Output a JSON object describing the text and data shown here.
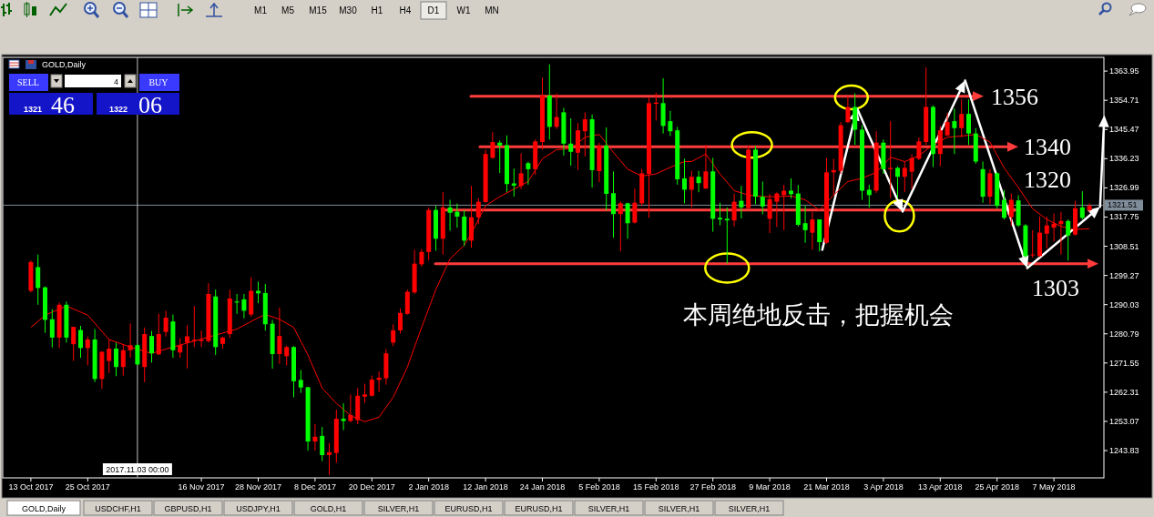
{
  "chart_data": {
    "type": "candlestick",
    "title": "GOLD,Daily",
    "categories": [
      "13 Oct 2017",
      null,
      null,
      null,
      null,
      null,
      null,
      null,
      "25 Oct 2017",
      null,
      null,
      null,
      null,
      null,
      null,
      null,
      null,
      null,
      null,
      null,
      null,
      null,
      null,
      null,
      "16 Nov 2017",
      null,
      null,
      null,
      null,
      null,
      null,
      null,
      "28 Nov 2017",
      null,
      null,
      null,
      null,
      null,
      null,
      null,
      "8 Dec 2017",
      null,
      null,
      null,
      null,
      null,
      null,
      null,
      "20 Dec 2017",
      null,
      null,
      null,
      null,
      null,
      null,
      null,
      "2 Jan 2018",
      null,
      null,
      null,
      null,
      null,
      null,
      null,
      "12 Jan 2018",
      null,
      null,
      null,
      null,
      null,
      null,
      null,
      "24 Jan 2018",
      null,
      null,
      null,
      null,
      null,
      null,
      null,
      "5 Feb 2018",
      null,
      null,
      null,
      null,
      null,
      null,
      null,
      "15 Feb 2018",
      null,
      null,
      null,
      null,
      null,
      null,
      null,
      "27 Feb 2018",
      null,
      null,
      null,
      null,
      null,
      null,
      null,
      "9 Mar 2018",
      null,
      null,
      null,
      null,
      null,
      null,
      null,
      "21 Mar 2018",
      null,
      null,
      null,
      null,
      null,
      null,
      null,
      "3 Apr 2018",
      null,
      null,
      null,
      null,
      null,
      null,
      null,
      "13 Apr 2018",
      null,
      null,
      null,
      null,
      null,
      null,
      null,
      "25 Apr 2018",
      null,
      null,
      null,
      null,
      null,
      null,
      null,
      "7 May 2018",
      null,
      null,
      null,
      null,
      null
    ],
    "ohlc": [
      [
        1294.4,
        1304,
        1293.9,
        1303.5
      ],
      [
        1301.9,
        1305.9,
        1290.0,
        1295.3
      ],
      [
        1295.5,
        1295.8,
        1281.1,
        1285.2
      ],
      [
        1285.4,
        1288.6,
        1276.5,
        1279.6
      ],
      [
        1279.6,
        1290.7,
        1276.3,
        1290.0
      ],
      [
        1290.0,
        1291.0,
        1278.0,
        1279.6
      ],
      [
        1277.5,
        1283.0,
        1272.2,
        1283.0
      ],
      [
        1282.0,
        1283.3,
        1273.2,
        1276.3
      ],
      [
        1276.3,
        1279.9,
        1270.8,
        1279.0
      ],
      [
        1279.0,
        1282.3,
        1265.5,
        1266.5
      ],
      [
        1266.5,
        1275.3,
        1263.4,
        1275.1
      ],
      [
        1272.2,
        1279.0,
        1268.4,
        1276.1
      ],
      [
        1276.1,
        1278.0,
        1267.4,
        1270.3
      ],
      [
        1270.3,
        1277.5,
        1267.6,
        1275.6
      ],
      [
        1275.6,
        1284.1,
        1273.2,
        1277.2
      ],
      [
        1277.2,
        1277.5,
        1270.8,
        1271.1
      ],
      [
        1270.3,
        1282.8,
        1265.5,
        1280.7
      ],
      [
        1280.1,
        1281.7,
        1271.7,
        1274.6
      ],
      [
        1274.3,
        1287.1,
        1274.1,
        1280.7
      ],
      [
        1281.4,
        1288.1,
        1279.9,
        1285.9
      ],
      [
        1284.7,
        1286.9,
        1273.2,
        1275.6
      ],
      [
        1274.9,
        1279.4,
        1273.2,
        1277.2
      ],
      [
        1278.0,
        1283.5,
        1269.8,
        1280.0
      ],
      [
        1278.5,
        1289.6,
        1276.6,
        1278.9
      ],
      [
        1278.5,
        1281.8,
        1276.6,
        1278.9
      ],
      [
        1278.5,
        1296.8,
        1278.0,
        1293.4
      ],
      [
        1292.6,
        1294.8,
        1274.1,
        1276.6
      ],
      [
        1277.6,
        1279.9,
        1276.1,
        1279.6
      ],
      [
        1280.7,
        1294.8,
        1279.4,
        1292.0
      ],
      [
        1291.0,
        1293.4,
        1287.1,
        1290.7
      ],
      [
        1291.7,
        1293.4,
        1285.7,
        1288.1
      ],
      [
        1286.9,
        1298.7,
        1286.2,
        1294.4
      ],
      [
        1294.4,
        1297.3,
        1290.5,
        1293.6
      ],
      [
        1293.7,
        1296.6,
        1281.8,
        1283.8
      ],
      [
        1284.0,
        1285.2,
        1269.8,
        1274.4
      ],
      [
        1274.4,
        1289.1,
        1271.3,
        1280.1
      ],
      [
        1273.7,
        1277.0,
        1270.8,
        1276.6
      ],
      [
        1276.6,
        1276.9,
        1260.7,
        1265.8
      ],
      [
        1266.2,
        1269.3,
        1262.1,
        1263.8
      ],
      [
        1263.9,
        1264.0,
        1243.8,
        1246.7
      ],
      [
        1246.7,
        1252.2,
        1243.8,
        1248.2
      ],
      [
        1248.5,
        1251.3,
        1240.5,
        1242.4
      ],
      [
        1242.4,
        1246.2,
        1236.1,
        1243.3
      ],
      [
        1243.1,
        1256.8,
        1240.0,
        1253.9
      ],
      [
        1253.9,
        1258.8,
        1250.3,
        1253.2
      ],
      [
        1253.2,
        1261.6,
        1252.8,
        1255.1
      ],
      [
        1253.5,
        1263.6,
        1252.2,
        1261.2
      ],
      [
        1260.9,
        1265.0,
        1258.9,
        1261.6
      ],
      [
        1261.2,
        1267.6,
        1260.9,
        1266.3
      ],
      [
        1266.2,
        1268.9,
        1262.4,
        1266.9
      ],
      [
        1266.7,
        1275.9,
        1264.7,
        1274.6
      ],
      [
        1278.0,
        1283.8,
        1276.9,
        1281.9
      ],
      [
        1281.9,
        1288.8,
        1280.9,
        1287.4
      ],
      [
        1287.1,
        1294.8,
        1286.9,
        1294.1
      ],
      [
        1293.9,
        1307.4,
        1293.4,
        1303.0
      ],
      [
        1302.8,
        1307.6,
        1302.1,
        1306.7
      ],
      [
        1306.7,
        1320.8,
        1304.0,
        1320.0
      ],
      [
        1320.0,
        1321.3,
        1307.1,
        1310.9
      ],
      [
        1310.9,
        1325.6,
        1305.9,
        1320.8
      ],
      [
        1320.8,
        1323.2,
        1313.4,
        1319.1
      ],
      [
        1319.4,
        1322.0,
        1314.4,
        1317.9
      ],
      [
        1317.9,
        1319.9,
        1308.6,
        1310.3
      ],
      [
        1310.3,
        1327.6,
        1308.0,
        1317.7
      ],
      [
        1317.7,
        1323.7,
        1315.5,
        1322.6
      ],
      [
        1322.5,
        1339.1,
        1322.3,
        1337.7
      ],
      [
        1336.5,
        1344.6,
        1336.2,
        1341.5
      ],
      [
        1341.3,
        1342.0,
        1331.7,
        1340.4
      ],
      [
        1340.5,
        1343.6,
        1325.6,
        1328.2
      ],
      [
        1328.4,
        1333.1,
        1324.2,
        1327.7
      ],
      [
        1327.6,
        1337.9,
        1326.6,
        1331.6
      ],
      [
        1334.8,
        1335.3,
        1328.0,
        1332.9
      ],
      [
        1332.9,
        1342.3,
        1331.1,
        1341.7
      ],
      [
        1341.5,
        1361.9,
        1339.1,
        1356.2
      ],
      [
        1356.2,
        1366.1,
        1342.3,
        1346.3
      ],
      [
        1346.3,
        1356.9,
        1345.6,
        1349.4
      ],
      [
        1350.9,
        1352.3,
        1337.2,
        1341.0
      ],
      [
        1341.0,
        1349.0,
        1334.0,
        1338.4
      ],
      [
        1338.1,
        1347.5,
        1332.7,
        1345.2
      ],
      [
        1344.9,
        1350.9,
        1336.9,
        1348.7
      ],
      [
        1348.7,
        1350.2,
        1327.1,
        1332.6
      ],
      [
        1332.3,
        1341.3,
        1328.8,
        1340.4
      ],
      [
        1340.4,
        1346.1,
        1319.9,
        1325.1
      ],
      [
        1325.3,
        1332.2,
        1311.2,
        1318.7
      ],
      [
        1318.7,
        1322.7,
        1306.9,
        1322.1
      ],
      [
        1322.1,
        1322.3,
        1310.9,
        1315.8
      ],
      [
        1316.0,
        1326.8,
        1315.7,
        1322.3
      ],
      [
        1322.1,
        1333.0,
        1321.3,
        1331.6
      ],
      [
        1331.4,
        1355.5,
        1317.5,
        1353.8
      ],
      [
        1353.6,
        1357.1,
        1348.3,
        1354.0
      ],
      [
        1353.8,
        1361.7,
        1344.2,
        1346.6
      ],
      [
        1348.1,
        1351.3,
        1343.4,
        1344.9
      ],
      [
        1345.2,
        1346.3,
        1328.0,
        1329.7
      ],
      [
        1330.0,
        1336.2,
        1322.1,
        1326.4
      ],
      [
        1326.4,
        1332.4,
        1320.8,
        1330.5
      ],
      [
        1330.5,
        1332.4,
        1325.6,
        1328.5
      ],
      [
        1326.8,
        1340.6,
        1326.6,
        1332.2
      ],
      [
        1332.2,
        1336.5,
        1313.1,
        1317.2
      ],
      [
        1317.5,
        1322.3,
        1315.1,
        1317.0
      ],
      [
        1317.2,
        1320.8,
        1303.0,
        1316.7
      ],
      [
        1316.7,
        1325.2,
        1314.8,
        1322.6
      ],
      [
        1322.9,
        1327.6,
        1317.3,
        1320.8
      ],
      [
        1320.6,
        1340.4,
        1320.2,
        1339.1
      ],
      [
        1339.1,
        1340.3,
        1321.8,
        1324.2
      ],
      [
        1324.2,
        1329.0,
        1318.6,
        1321.1
      ],
      [
        1317.2,
        1325.0,
        1312.7,
        1323.4
      ],
      [
        1322.6,
        1325.6,
        1314.6,
        1325.2
      ],
      [
        1324.7,
        1328.0,
        1313.6,
        1326.1
      ],
      [
        1326.1,
        1330.0,
        1323.7,
        1325.0
      ],
      [
        1325.2,
        1327.9,
        1314.8,
        1315.3
      ],
      [
        1315.8,
        1321.3,
        1309.6,
        1313.6
      ],
      [
        1312.8,
        1319.4,
        1307.4,
        1317.0
      ],
      [
        1317.0,
        1317.0,
        1306.9,
        1309.8
      ],
      [
        1309.6,
        1336.5,
        1309.3,
        1331.9
      ],
      [
        1331.9,
        1336.2,
        1324.7,
        1332.6
      ],
      [
        1332.4,
        1347.8,
        1331.4,
        1346.8
      ],
      [
        1347.8,
        1355.9,
        1347.5,
        1352.6
      ],
      [
        1352.6,
        1356.9,
        1340.6,
        1345.4
      ],
      [
        1345.4,
        1346.8,
        1323.2,
        1326.1
      ],
      [
        1326.4,
        1328.0,
        1320.8,
        1324.7
      ],
      [
        1326.1,
        1344.9,
        1325.4,
        1341.3
      ],
      [
        1341.3,
        1342.3,
        1331.4,
        1332.9
      ],
      [
        1332.9,
        1348.1,
        1323.7,
        1333.3
      ],
      [
        1333.3,
        1333.8,
        1323.7,
        1330.5
      ],
      [
        1330.5,
        1335.3,
        1325.6,
        1333.3
      ],
      [
        1332.1,
        1337.7,
        1326.6,
        1336.4
      ],
      [
        1336.2,
        1342.9,
        1335.8,
        1341.7
      ],
      [
        1341.5,
        1365.1,
        1340.6,
        1352.6
      ],
      [
        1352.6,
        1353.1,
        1333.6,
        1337.7
      ],
      [
        1337.7,
        1346.5,
        1333.8,
        1345.2
      ],
      [
        1343.6,
        1350.7,
        1343.4,
        1347.8
      ],
      [
        1348.1,
        1352.1,
        1337.7,
        1345.9
      ],
      [
        1345.9,
        1355.0,
        1343.0,
        1350.4
      ],
      [
        1350.4,
        1355.0,
        1340.6,
        1344.2
      ],
      [
        1344.2,
        1345.9,
        1334.6,
        1335.3
      ],
      [
        1332.9,
        1335.3,
        1322.3,
        1324.2
      ],
      [
        1324.2,
        1332.9,
        1321.8,
        1331.6
      ],
      [
        1331.6,
        1331.9,
        1320.4,
        1321.3
      ],
      [
        1323.2,
        1326.3,
        1317.0,
        1317.5
      ],
      [
        1317.7,
        1325.2,
        1315.1,
        1323.2
      ],
      [
        1323.0,
        1324.7,
        1314.6,
        1315.1
      ],
      [
        1315.1,
        1315.5,
        1304.9,
        1305.4
      ],
      [
        1305.7,
        1313.6,
        1304.9,
        1305.9
      ],
      [
        1305.4,
        1317.9,
        1305.1,
        1312.8
      ],
      [
        1312.5,
        1317.9,
        1307.8,
        1315.1
      ],
      [
        1314.4,
        1318.9,
        1310.0,
        1315.7
      ],
      [
        1315.5,
        1319.4,
        1305.9,
        1316.5
      ],
      [
        1316.5,
        1317.0,
        1304.0,
        1311.9
      ],
      [
        1312.2,
        1322.8,
        1311.9,
        1320.5
      ],
      [
        1320.8,
        1325.9,
        1317.0,
        1317.5
      ],
      [
        1319.9,
        1322.1,
        1319.4,
        1321.3
      ]
    ],
    "colors": [
      "#ff0000",
      "#00ff00",
      "#00ff00",
      "#00ff00",
      "#ff0000",
      "#00ff00",
      "#ff0000",
      "#00ff00",
      "#ff0000",
      "#00ff00",
      "#ff0000",
      "#ff0000",
      "#00ff00",
      "#ff0000",
      "#ff0000",
      "#00ff00",
      "#ff0000",
      "#00ff00",
      "#ff0000",
      "#ff0000",
      "#00ff00",
      "#ff0000",
      "#ff0000",
      "#ff0000",
      "#ff0000",
      "#ff0000",
      "#00ff00",
      "#ff0000",
      "#ff0000",
      "#00ff00",
      "#00ff00",
      "#ff0000",
      "#00ff00",
      "#00ff00",
      "#00ff00",
      "#ff0000",
      "#ff0000",
      "#00ff00",
      "#00ff00",
      "#00ff00",
      "#ff0000",
      "#00ff00",
      "#ff0000",
      "#ff0000",
      "#00ff00",
      "#ff0000",
      "#ff0000",
      "#ff0000",
      "#ff0000",
      "#ff0000",
      "#ff0000",
      "#ff0000",
      "#ff0000",
      "#ff0000",
      "#ff0000",
      "#ff0000",
      "#ff0000",
      "#00ff00",
      "#ff0000",
      "#00ff00",
      "#00ff00",
      "#00ff00",
      "#ff0000",
      "#ff0000",
      "#ff0000",
      "#ff0000",
      "#00ff00",
      "#00ff00",
      "#00ff00",
      "#ff0000",
      "#00ff00",
      "#ff0000",
      "#ff0000",
      "#00ff00",
      "#ff0000",
      "#00ff00",
      "#00ff00",
      "#ff0000",
      "#ff0000",
      "#00ff00",
      "#ff0000",
      "#00ff00",
      "#00ff00",
      "#ff0000",
      "#00ff00",
      "#ff0000",
      "#ff0000",
      "#ff0000",
      "#ff0000",
      "#00ff00",
      "#00ff00",
      "#00ff00",
      "#00ff00",
      "#ff0000",
      "#00ff00",
      "#ff0000",
      "#00ff00",
      "#00ff00",
      "#00ff00",
      "#ff0000",
      "#00ff00",
      "#ff0000",
      "#00ff00",
      "#00ff00",
      "#ff0000",
      "#ff0000",
      "#ff0000",
      "#00ff00",
      "#00ff00",
      "#00ff00",
      "#ff0000",
      "#00ff00",
      "#ff0000",
      "#ff0000",
      "#ff0000",
      "#ff0000",
      "#00ff00",
      "#00ff00",
      "#00ff00",
      "#ff0000",
      "#00ff00",
      "#ff0000",
      "#00ff00",
      "#ff0000",
      "#ff0000",
      "#ff0000",
      "#ff0000",
      "#00ff00",
      "#ff0000",
      "#ff0000",
      "#00ff00",
      "#ff0000",
      "#00ff00",
      "#00ff00",
      "#00ff00",
      "#ff0000",
      "#00ff00",
      "#00ff00",
      "#ff0000",
      "#00ff00",
      "#00ff00",
      "#ff0000",
      "#ff0000",
      "#ff0000",
      "#ff0000",
      "#ff0000",
      "#00ff00",
      "#ff0000",
      "#00ff00",
      "#ff0000"
    ],
    "series": [
      {
        "type": "line",
        "color": "#ff0000",
        "values": [
          1282.8,
          null,
          1286.7,
          null,
          null,
          1289.6,
          null,
          null,
          1286.7,
          null,
          null,
          1279.0,
          null,
          null,
          1276.6,
          null,
          null,
          1274.6,
          null,
          null,
          1276.6,
          null,
          null,
          1278.5,
          null,
          null,
          1280.4,
          null,
          null,
          1282.3,
          null,
          null,
          1285.9,
          1286.9,
          null,
          1285.4,
          null,
          1282.8,
          null,
          1274.1,
          null,
          1263.6,
          null,
          1258.8,
          null,
          1254.9,
          null,
          1253.0,
          null,
          1254.4,
          null,
          1260.7,
          null,
          1270.3,
          null,
          1282.8,
          null,
          1294.8,
          null,
          1304.5,
          null,
          1308.8,
          1312.6,
          null,
          1321.3,
          null,
          1324.2,
          null,
          1326.6,
          null,
          1329.0,
          null,
          1336.2,
          null,
          1339.1,
          null,
          1339.4,
          null,
          1343.0,
          null,
          1343.9,
          null,
          1338.2,
          null,
          1332.9,
          null,
          1330.7,
          null,
          1331.4,
          null,
          1333.5,
          null,
          1335.3,
          1335.3,
          null,
          1337.7,
          null,
          1331.4,
          null,
          1326.1,
          null,
          1324.7,
          null,
          1324.2,
          null,
          1324.2,
          null,
          1324.4,
          null,
          1323.2,
          null,
          1319.9,
          null,
          1324.7,
          null,
          1329.0,
          null,
          1330.0,
          null,
          1331.9,
          null,
          1336.7,
          null,
          1335.3,
          null,
          1337.2,
          null,
          1340.6,
          null,
          1343.0,
          null,
          1343.4,
          null,
          1343.9,
          null,
          1341.5,
          null,
          1333.3,
          null,
          1327.1,
          null,
          1320.4,
          null,
          1317.0,
          null,
          1314.8,
          null,
          1313.8,
          null,
          1314.1
        ]
      }
    ],
    "ylim": [
      1235.2,
      1368.3
    ],
    "yticks": [
      1363.95,
      1354.71,
      1345.47,
      1336.23,
      1326.99,
      1317.75,
      1308.51,
      1299.27,
      1290.03,
      1280.79,
      1271.55,
      1262.31,
      1253.07,
      1243.83
    ],
    "ref_lines": [
      {
        "axis": "y",
        "value": 1356,
        "label": "1356",
        "color": "#ff3c3c"
      },
      {
        "axis": "y",
        "value": 1340,
        "label": "1340",
        "color": "#ff3c3c"
      },
      {
        "axis": "y",
        "value": 1320,
        "label": "1320",
        "color": "#ff3c3c"
      },
      {
        "axis": "y",
        "value": 1303,
        "label": "1303",
        "color": "#ff3c3c"
      },
      {
        "axis": "y",
        "value": 1321.51,
        "label": "1321.51",
        "color": "#7f8c99"
      }
    ],
    "annotations": [
      "本周绝地反击，把握机会",
      "2017.11.03 00:00",
      "SELL",
      "4",
      "BUY",
      "1321",
      "46",
      "1322",
      "06",
      "M1",
      "M5",
      "M15",
      "M30",
      "H1",
      "H4",
      "D1",
      "W1",
      "MN",
      "GOLD,Daily",
      "USDCHF,H1",
      "GBPUSD,H1",
      "USDJPY,H1",
      "GOLD,H1",
      "SILVER,H1",
      "EURUSD,H1",
      "EURUSD,H1",
      "SILVER,H1",
      "SILVER,H1",
      "SILVER,H1"
    ]
  }
}
